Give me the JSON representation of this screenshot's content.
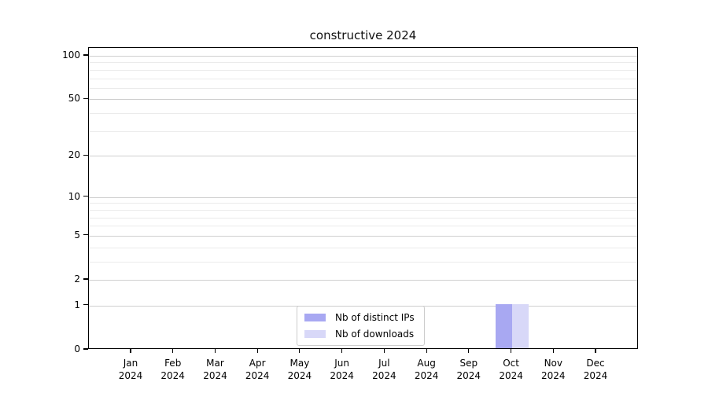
{
  "chart_data": {
    "type": "bar",
    "title": "constructive 2024",
    "x": {
      "months": [
        "Jan",
        "Feb",
        "Mar",
        "Apr",
        "May",
        "Jun",
        "Jul",
        "Aug",
        "Sep",
        "Oct",
        "Nov",
        "Dec"
      ],
      "year": "2024"
    },
    "series": [
      {
        "name": "Nb of distinct IPs",
        "color": "#a8a8f2",
        "values": [
          0,
          0,
          0,
          0,
          0,
          0,
          0,
          0,
          0,
          1,
          0,
          0
        ]
      },
      {
        "name": "Nb of downloads",
        "color": "#d8d8f8",
        "values": [
          0,
          0,
          0,
          0,
          0,
          0,
          0,
          0,
          0,
          1,
          0,
          0
        ]
      }
    ],
    "y_axis": {
      "scale": "log10(1+x)",
      "tick_values": [
        0,
        1,
        2,
        5,
        10,
        20,
        50,
        100
      ],
      "minor_gridline_values": [
        3,
        4,
        6,
        7,
        8,
        9,
        30,
        40,
        60,
        70,
        80,
        90
      ],
      "ylim": [
        0,
        111
      ]
    },
    "legend": {
      "position": "lower center inside"
    },
    "grid": "horizontal",
    "colors": {
      "grid_major": "#cfcfcf",
      "grid_minor": "#ebebeb",
      "axis": "#000000",
      "text": "#000000",
      "background": "#ffffff"
    }
  }
}
